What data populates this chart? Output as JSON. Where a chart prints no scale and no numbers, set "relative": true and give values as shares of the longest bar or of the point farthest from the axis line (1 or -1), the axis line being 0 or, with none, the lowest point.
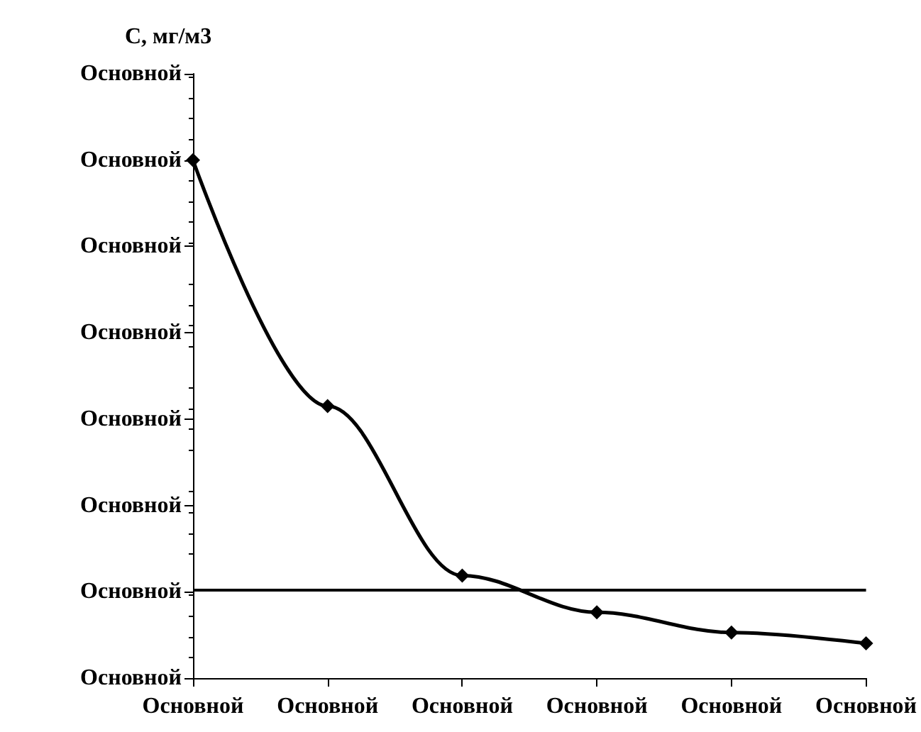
{
  "chart_data": {
    "type": "line",
    "ylabel": "C, мг/м3",
    "categories": [
      "Основной",
      "Основной",
      "Основной",
      "Основной",
      "Основной",
      "Основной"
    ],
    "relative": true,
    "series": [
      {
        "color": "#000000",
        "values": [
          1,
          0.525,
          0.198,
          0.127,
          0.088,
          0.067
        ]
      }
    ],
    "annotations": [
      "Основной",
      "Основной",
      "Основной",
      "Основной",
      "Основной",
      "Основной",
      "Основной",
      "Основной"
    ],
    "ref_lines": [
      {
        "axis": "y",
        "value": 0.167,
        "color": "#000000",
        "line_style": "solid"
      }
    ],
    "marker": "diamond",
    "line_style": "solid"
  }
}
